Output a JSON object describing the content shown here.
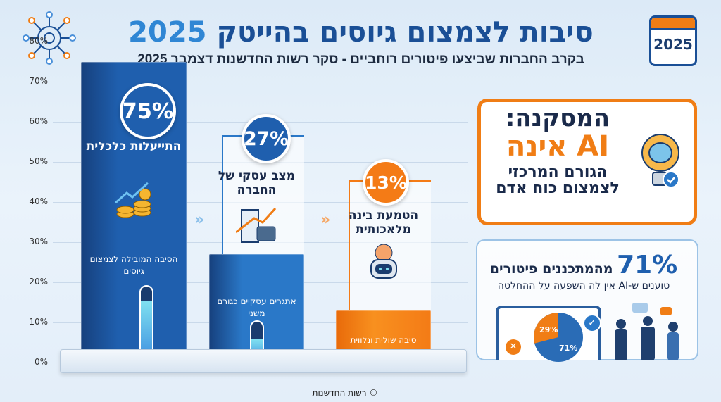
{
  "header": {
    "title_main": "סיבות לצמצום גיוסים בהייטק",
    "title_year": "2025",
    "subtitle": "בקרב החברות שביצעו פיטורים רוחביים - סקר רשות החדשנות דצמבר 2025",
    "calendar_year": "2025"
  },
  "chart_data": {
    "type": "bar",
    "categories": [
      "התייעלות כלכלית",
      "מצב עסקי של החברה",
      "הטמעת בינה מלאכותית"
    ],
    "values": [
      75,
      27,
      13
    ],
    "value_labels": [
      "75%",
      "27%",
      "13%"
    ],
    "bar_captions": [
      "הסיבה המובילה לצמצום גיוסים",
      "אתגרים עסקיים כגורם משני",
      "סיבה שולית ונלווית"
    ],
    "colors": [
      "#1f5fae",
      "#2a78c8",
      "#f47b16"
    ],
    "ylim": [
      0,
      80
    ],
    "yticks": [
      "0%",
      "10%",
      "20%",
      "30%",
      "40%",
      "50%",
      "60%",
      "70%",
      "80%"
    ],
    "grid": true
  },
  "conclusion": {
    "line1": "המסקנה:",
    "line2": "AI אינה",
    "line3": "הגורם המרכזי",
    "line4": "לצמצום כוח אדם"
  },
  "stat": {
    "value": "71%",
    "headline": "מהמתכננים פיטורים",
    "sub": "טוענים ש-AI אין לה השפעה על ההחלטה",
    "pie_labels": [
      "29%",
      "71%"
    ],
    "pie_values": [
      29,
      71
    ]
  },
  "footer": {
    "credit": "© רשות החדשנות"
  }
}
